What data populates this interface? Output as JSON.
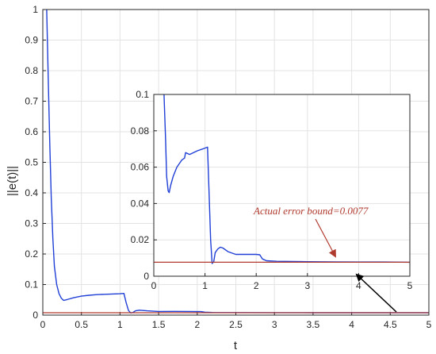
{
  "chart_data": [
    {
      "type": "line",
      "title": "",
      "xlabel": "t",
      "ylabel": "||e(t)||",
      "xlim": [
        0,
        5
      ],
      "ylim": [
        0,
        1
      ],
      "xticks": [
        "0",
        "0.5",
        "1",
        "1.5",
        "2",
        "2.5",
        "3",
        "3.5",
        "4",
        "4.5",
        "5"
      ],
      "yticks": [
        "0",
        "0.1",
        "0.2",
        "0.3",
        "0.4",
        "0.5",
        "0.6",
        "0.7",
        "0.8",
        "0.9",
        "1"
      ],
      "grid": true,
      "series": [
        {
          "color": "#1f3fd6",
          "x": [
            0.05,
            0.07,
            0.09,
            0.11,
            0.13,
            0.15,
            0.18,
            0.21,
            0.24,
            0.27,
            0.3,
            0.33,
            0.4,
            0.5,
            0.6,
            0.7,
            0.8,
            0.9,
            1.0,
            1.05,
            1.08,
            1.11,
            1.14,
            1.17,
            1.2,
            1.25,
            1.35,
            1.5,
            1.7,
            1.9,
            2.05,
            2.1,
            2.2,
            2.5,
            3.0,
            3.5,
            4.0,
            4.5,
            5.0
          ],
          "y": [
            1.0,
            0.78,
            0.56,
            0.38,
            0.25,
            0.16,
            0.1,
            0.07,
            0.055,
            0.048,
            0.05,
            0.052,
            0.057,
            0.062,
            0.065,
            0.067,
            0.068,
            0.069,
            0.07,
            0.071,
            0.04,
            0.015,
            0.007,
            0.009,
            0.014,
            0.016,
            0.014,
            0.012,
            0.0122,
            0.012,
            0.0115,
            0.0095,
            0.0085,
            0.0082,
            0.008,
            0.0079,
            0.0078,
            0.0078,
            0.0077
          ]
        },
        {
          "color": "#b03a2e",
          "x": [
            0,
            5
          ],
          "y": [
            0.0077,
            0.0077
          ]
        }
      ]
    },
    {
      "type": "line",
      "title": "",
      "xlim": [
        0,
        5
      ],
      "ylim": [
        0,
        0.1
      ],
      "xticks": [
        "0",
        "1",
        "2",
        "3",
        "4",
        "5"
      ],
      "yticks": [
        "0",
        "0.02",
        "0.04",
        "0.06",
        "0.08",
        "0.1"
      ],
      "grid": true,
      "annotation": "Actual error bound=0.0077",
      "series": [
        {
          "color": "#1f3fd6",
          "x": [
            0.2,
            0.23,
            0.25,
            0.28,
            0.3,
            0.33,
            0.38,
            0.45,
            0.55,
            0.6,
            0.62,
            0.7,
            0.85,
            1.0,
            1.05,
            1.08,
            1.11,
            1.14,
            1.17,
            1.2,
            1.25,
            1.3,
            1.35,
            1.45,
            1.6,
            1.8,
            2.0,
            2.07,
            2.12,
            2.2,
            2.4,
            3.0,
            3.5,
            4.0,
            4.5,
            5.0
          ],
          "y": [
            0.1,
            0.075,
            0.055,
            0.047,
            0.046,
            0.05,
            0.055,
            0.06,
            0.064,
            0.065,
            0.068,
            0.067,
            0.069,
            0.0705,
            0.071,
            0.045,
            0.02,
            0.007,
            0.008,
            0.013,
            0.015,
            0.016,
            0.0155,
            0.0135,
            0.012,
            0.012,
            0.012,
            0.0118,
            0.0095,
            0.0085,
            0.0082,
            0.008,
            0.0079,
            0.0078,
            0.0078,
            0.0077
          ]
        },
        {
          "color": "#b03a2e",
          "x": [
            0,
            5
          ],
          "y": [
            0.0077,
            0.0077
          ]
        }
      ]
    }
  ]
}
